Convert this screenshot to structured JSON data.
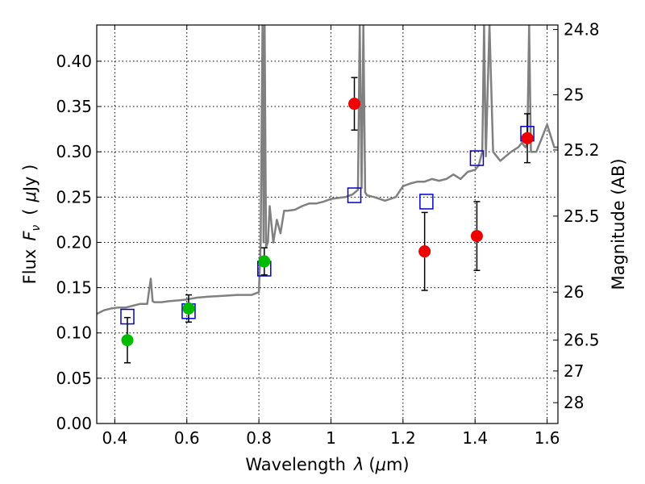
{
  "chart_data": {
    "type": "scatter",
    "xlabel_text": "Wavelength",
    "xlabel_symbol": "λ",
    "xlabel_unit_pre": "(",
    "xlabel_unit_mu": "μ",
    "xlabel_unit_post": "m)",
    "ylabel_text": "Flux",
    "ylabel_symbol": "F",
    "ylabel_subscript": "ν",
    "ylabel_unit_pre": "(",
    "ylabel_unit_mu": "μ",
    "ylabel_unit_post": "Jy )",
    "y2label": "Magnitude (AB)",
    "xlim": [
      0.35,
      1.63
    ],
    "ylim": [
      0.0,
      0.44
    ],
    "grid": true,
    "x_ticks": [
      {
        "value": 0.4,
        "label": "0.4"
      },
      {
        "value": 0.6,
        "label": "0.6"
      },
      {
        "value": 0.8,
        "label": "0.8"
      },
      {
        "value": 1.0,
        "label": "1"
      },
      {
        "value": 1.2,
        "label": "1.2"
      },
      {
        "value": 1.4,
        "label": "1.4"
      },
      {
        "value": 1.6,
        "label": "1.6"
      }
    ],
    "y_ticks": [
      {
        "value": 0.0,
        "label": "0.00"
      },
      {
        "value": 0.05,
        "label": "0.05"
      },
      {
        "value": 0.1,
        "label": "0.10"
      },
      {
        "value": 0.15,
        "label": "0.15"
      },
      {
        "value": 0.2,
        "label": "0.20"
      },
      {
        "value": 0.25,
        "label": "0.25"
      },
      {
        "value": 0.3,
        "label": "0.30"
      },
      {
        "value": 0.35,
        "label": "0.35"
      },
      {
        "value": 0.4,
        "label": "0.40"
      }
    ],
    "y2_ticks": [
      {
        "flux": 0.435,
        "label": "24.8"
      },
      {
        "flux": 0.363,
        "label": "25"
      },
      {
        "flux": 0.302,
        "label": "25.2"
      },
      {
        "flux": 0.229,
        "label": "25.5"
      },
      {
        "flux": 0.145,
        "label": "26"
      },
      {
        "flux": 0.092,
        "label": "26.5"
      },
      {
        "flux": 0.058,
        "label": "27"
      },
      {
        "flux": 0.023,
        "label": "28"
      }
    ],
    "colors": {
      "spectrum": "#808080",
      "green_points": "#00bb00",
      "red_points": "#ee0000",
      "model_squares": "#0000cc",
      "error_bars": "#000000"
    },
    "series": [
      {
        "name": "template spectrum",
        "kind": "line",
        "x": [
          0.35,
          0.37,
          0.39,
          0.41,
          0.43,
          0.45,
          0.47,
          0.49,
          0.5,
          0.505,
          0.51,
          0.53,
          0.55,
          0.58,
          0.6,
          0.63,
          0.66,
          0.7,
          0.74,
          0.78,
          0.8,
          0.805,
          0.81,
          0.813,
          0.816,
          0.82,
          0.825,
          0.83,
          0.84,
          0.85,
          0.86,
          0.87,
          0.88,
          0.9,
          0.92,
          0.94,
          0.96,
          0.98,
          1.0,
          1.02,
          1.04,
          1.06,
          1.075,
          1.08,
          1.085,
          1.09,
          1.095,
          1.1,
          1.12,
          1.15,
          1.18,
          1.2,
          1.22,
          1.24,
          1.26,
          1.28,
          1.3,
          1.32,
          1.34,
          1.36,
          1.38,
          1.4,
          1.41,
          1.42,
          1.425,
          1.43,
          1.44,
          1.45,
          1.47,
          1.5,
          1.52,
          1.53,
          1.54,
          1.545,
          1.55,
          1.555,
          1.56,
          1.57,
          1.58,
          1.6,
          1.62,
          1.63
        ],
        "y": [
          0.121,
          0.125,
          0.127,
          0.128,
          0.128,
          0.13,
          0.132,
          0.132,
          0.16,
          0.135,
          0.134,
          0.134,
          0.135,
          0.136,
          0.137,
          0.139,
          0.14,
          0.141,
          0.142,
          0.142,
          0.145,
          0.2,
          0.44,
          0.2,
          0.44,
          0.195,
          0.2,
          0.24,
          0.2,
          0.225,
          0.21,
          0.235,
          0.235,
          0.236,
          0.24,
          0.243,
          0.243,
          0.245,
          0.248,
          0.249,
          0.25,
          0.253,
          0.258,
          0.44,
          0.26,
          0.44,
          0.255,
          0.252,
          0.25,
          0.246,
          0.25,
          0.262,
          0.265,
          0.267,
          0.267,
          0.27,
          0.268,
          0.27,
          0.275,
          0.27,
          0.278,
          0.28,
          0.285,
          0.3,
          0.44,
          0.295,
          0.44,
          0.3,
          0.29,
          0.3,
          0.305,
          0.31,
          0.305,
          0.31,
          0.44,
          0.3,
          0.3,
          0.3,
          0.31,
          0.33,
          0.305,
          0.305
        ]
      },
      {
        "name": "model fluxes",
        "kind": "square",
        "x": [
          0.435,
          0.605,
          0.815,
          1.065,
          1.265,
          1.405,
          1.545
        ],
        "y": [
          0.118,
          0.124,
          0.171,
          0.252,
          0.245,
          0.293,
          0.32
        ]
      },
      {
        "name": "green photometry",
        "kind": "point",
        "x": [
          0.435,
          0.605,
          0.815
        ],
        "y": [
          0.092,
          0.127,
          0.179
        ],
        "yerr": [
          0.025,
          0.015,
          0.015
        ]
      },
      {
        "name": "red photometry",
        "kind": "point",
        "x": [
          1.065,
          1.26,
          1.405,
          1.545
        ],
        "y": [
          0.353,
          0.19,
          0.207,
          0.315
        ],
        "yerr": [
          0.029,
          0.043,
          0.038,
          0.027
        ]
      }
    ]
  }
}
